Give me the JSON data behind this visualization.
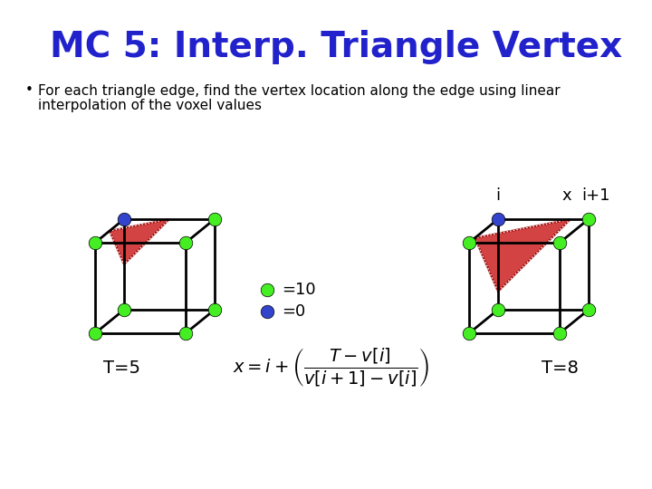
{
  "title": "MC 5: Interp. Triangle Vertex",
  "title_color": "#2222cc",
  "bullet_text_line1": "For each triangle edge, find the vertex location along the edge using linear",
  "bullet_text_line2": "interpolation of the voxel values",
  "background_color": "#ffffff",
  "green_color": "#44ee22",
  "blue_color": "#3344cc",
  "red_color": "#cc2222",
  "cube1_T": "T=5",
  "cube2_T": "T=8",
  "legend_green": "=10",
  "legend_blue": "=0",
  "label_i": "i",
  "label_x": "x",
  "label_i1": "i+1",
  "title_fontsize": 28,
  "bullet_fontsize": 11,
  "label_fontsize": 13
}
